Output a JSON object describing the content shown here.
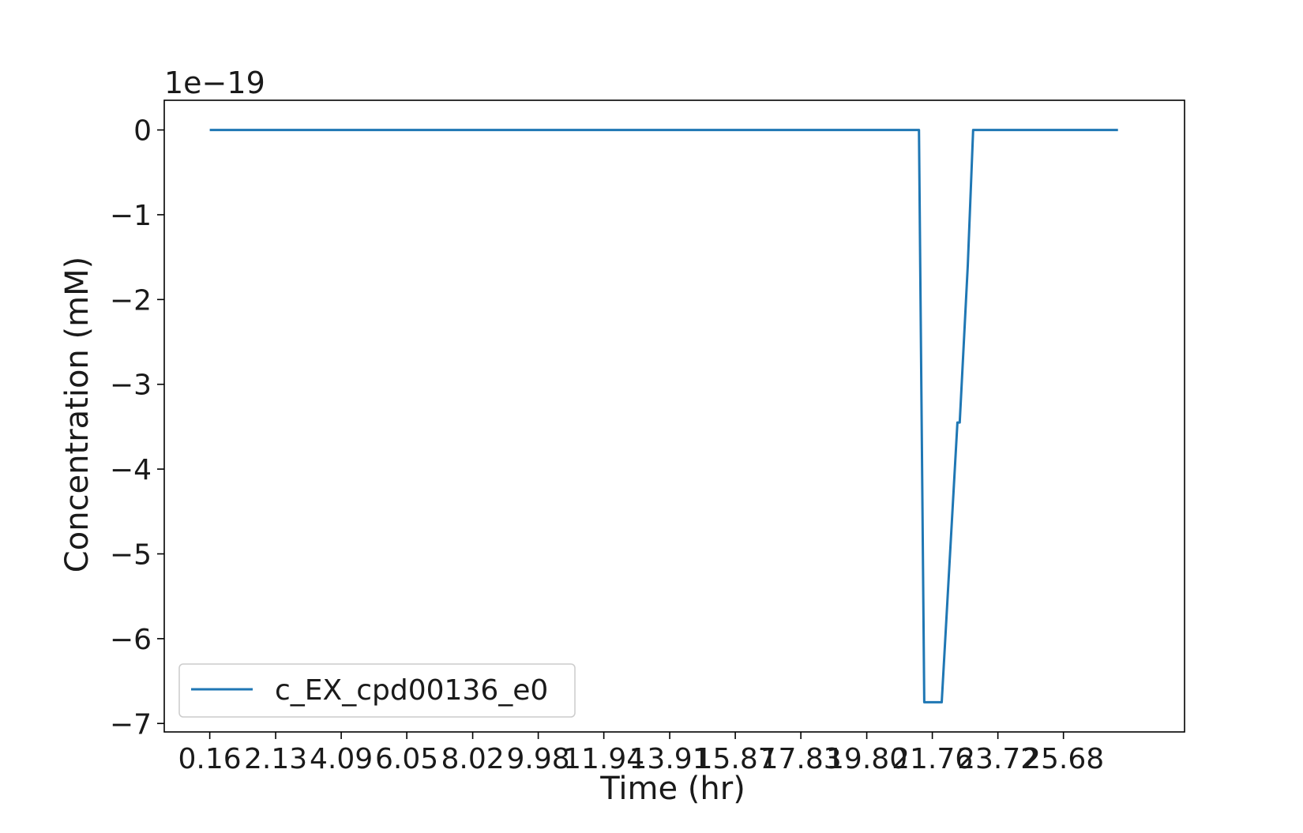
{
  "chart_data": {
    "type": "line",
    "title": "",
    "xlabel": "Time (hr)",
    "ylabel": "Concentration (mM)",
    "y_offset_label": "1e−19",
    "xlim": [
      -1.2,
      29.3
    ],
    "ylim": [
      -7.1,
      0.35
    ],
    "x_ticks": [
      0.16,
      2.13,
      4.09,
      6.05,
      8.02,
      9.98,
      11.94,
      13.91,
      15.87,
      17.83,
      19.8,
      21.76,
      23.72,
      25.68
    ],
    "x_tick_labels": [
      "0.16",
      "2.13",
      "4.09",
      "6.05",
      "8.02",
      "9.98",
      "11.94",
      "13.91",
      "15.87",
      "17.83",
      "19.80",
      "21.76",
      "23.72",
      "25.68"
    ],
    "y_ticks": [
      0,
      -1,
      -2,
      -3,
      -4,
      -5,
      -6,
      -7
    ],
    "y_tick_labels": [
      "0",
      "−1",
      "−2",
      "−3",
      "−4",
      "−5",
      "−6",
      "−7"
    ],
    "grid": false,
    "legend_position": "lower-left",
    "series": [
      {
        "name": "c_EX_cpd00136_e0",
        "color": "#1f77b4",
        "x": [
          0.16,
          21.36,
          21.52,
          22.04,
          22.51,
          22.58,
          22.82,
          22.98,
          27.31
        ],
        "y": [
          0,
          0,
          -6.75,
          -6.75,
          -3.45,
          -3.45,
          -1.6,
          0,
          0
        ]
      }
    ]
  }
}
